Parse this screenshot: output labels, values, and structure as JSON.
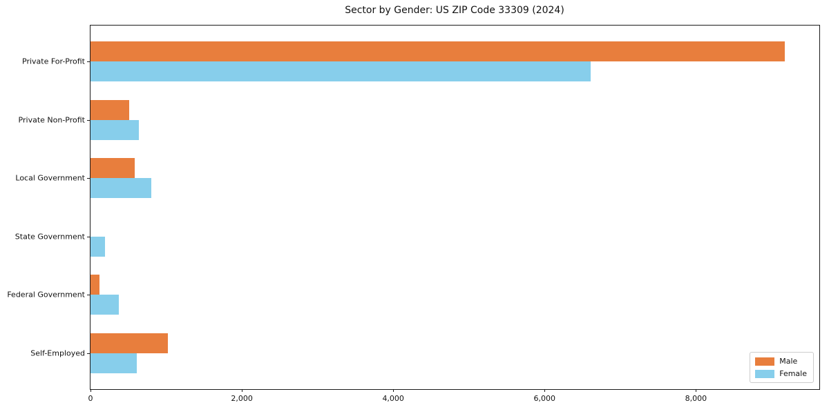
{
  "chart_data": {
    "type": "bar",
    "orientation": "horizontal",
    "title": "Sector by Gender: US ZIP Code 33309 (2024)",
    "categories": [
      "Private For-Profit",
      "Private Non-Profit",
      "Local Government",
      "State Government",
      "Federal Government",
      "Self-Employed"
    ],
    "series": [
      {
        "name": "Male",
        "color": "#e87e3d",
        "values": [
          9170,
          510,
          585,
          0,
          120,
          1020
        ]
      },
      {
        "name": "Female",
        "color": "#87ceeb",
        "values": [
          6610,
          640,
          800,
          195,
          375,
          610
        ]
      }
    ],
    "xlabel": "",
    "ylabel": "",
    "xlim": [
      0,
      9630
    ],
    "xticks": [
      0,
      2000,
      4000,
      6000,
      8000
    ],
    "xtick_labels": [
      "0",
      "2,000",
      "4,000",
      "6,000",
      "8,000"
    ],
    "grid": false,
    "legend_position": "lower right"
  },
  "colors": {
    "male": "#e87e3d",
    "female": "#87ceeb",
    "axis": "#1a1a1a",
    "text": "#111111",
    "legend_border": "#cccccc",
    "background": "#ffffff"
  }
}
